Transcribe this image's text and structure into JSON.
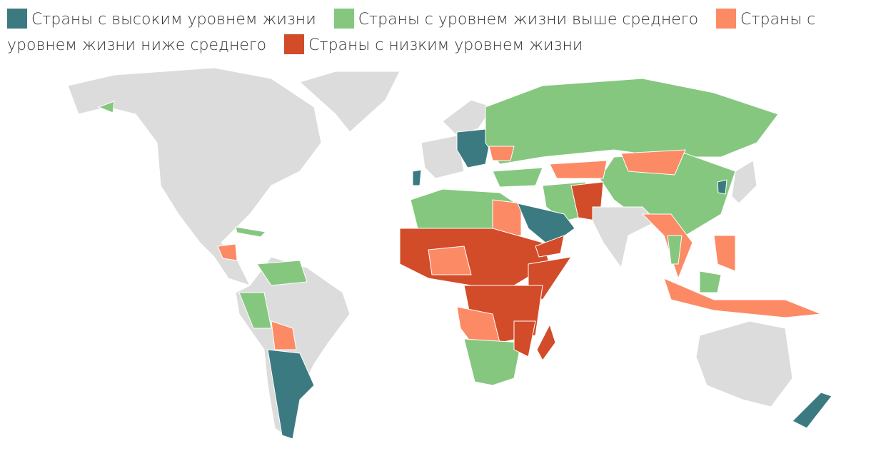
{
  "legend": [
    {
      "name": "Страны с высоким уровнем жизни",
      "color": "#3b7a80"
    },
    {
      "name": "Страны с уровнем жизни выше среднего",
      "color": "#85c77f"
    },
    {
      "name": "Страны с уровнем жизни ниже среднего",
      "color": "#fc8a65"
    },
    {
      "name": "Страны с низким уровнем жизни",
      "color": "#d24c2a"
    }
  ]
}
